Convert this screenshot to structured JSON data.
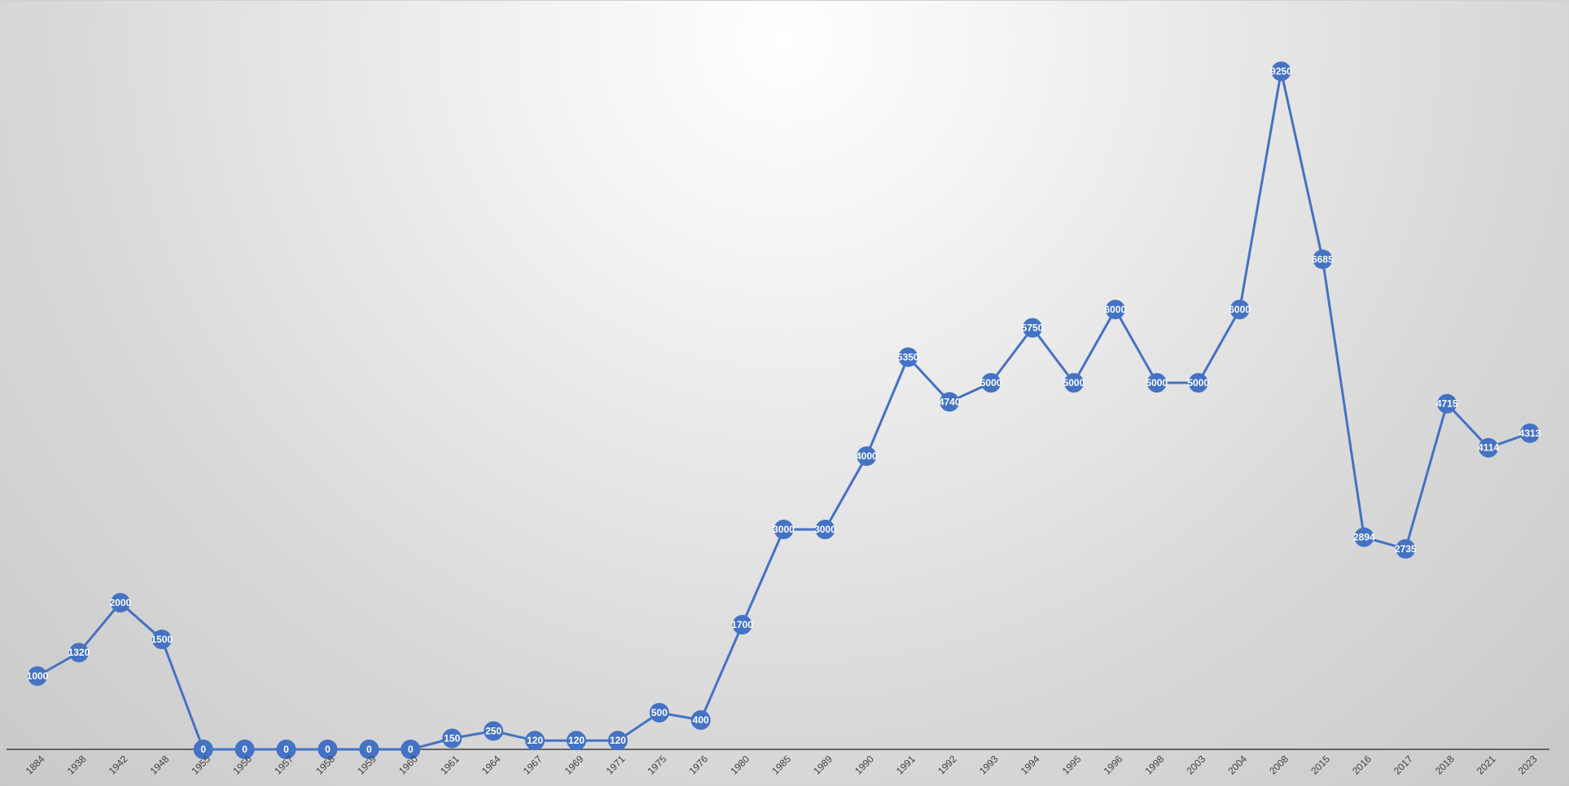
{
  "chart_data": {
    "type": "line",
    "title": "",
    "xlabel": "",
    "ylabel": "",
    "ylim": [
      0,
      10000
    ],
    "grid": false,
    "legend": "none",
    "markers": "circle",
    "data_labels": "on markers",
    "colors": {
      "line": "#4472c4",
      "marker": "#4472c4",
      "data_label_text": "#ffffff",
      "axis": "#404040"
    },
    "categories": [
      "1884",
      "1938",
      "1942",
      "1948",
      "1955",
      "1956",
      "1957",
      "1958",
      "1959",
      "1960",
      "1961",
      "1964",
      "1967",
      "1969",
      "1971",
      "1975",
      "1976",
      "1980",
      "1985",
      "1989",
      "1990",
      "1991",
      "1992",
      "1993",
      "1994",
      "1995",
      "1996",
      "1998",
      "2003",
      "2004",
      "2008",
      "2015",
      "2016",
      "2017",
      "2018",
      "2021",
      "2023"
    ],
    "values": [
      1000,
      1320,
      2000,
      1500,
      0,
      0,
      0,
      0,
      0,
      0,
      150,
      250,
      120,
      120,
      120,
      500,
      400,
      1700,
      3000,
      3000,
      4000,
      5350,
      4740,
      5000,
      5750,
      5000,
      6000,
      5000,
      5000,
      6000,
      9250,
      6685,
      2894,
      2735,
      4715,
      4114,
      4313
    ],
    "value_labels": [
      "1000",
      "1320",
      "2000",
      "1500",
      "0",
      "0",
      "0",
      "0",
      "0",
      "0",
      "150",
      "250",
      "120",
      "120",
      "120",
      "500",
      "400",
      "1700",
      "3000",
      "3000",
      "4000",
      "5350",
      "4740",
      "5000",
      "5750",
      "5000",
      "6000",
      "5000",
      "5000",
      "6000",
      "9250",
      "6685",
      "2894",
      "2735",
      "4715",
      "4114",
      "4313"
    ]
  }
}
